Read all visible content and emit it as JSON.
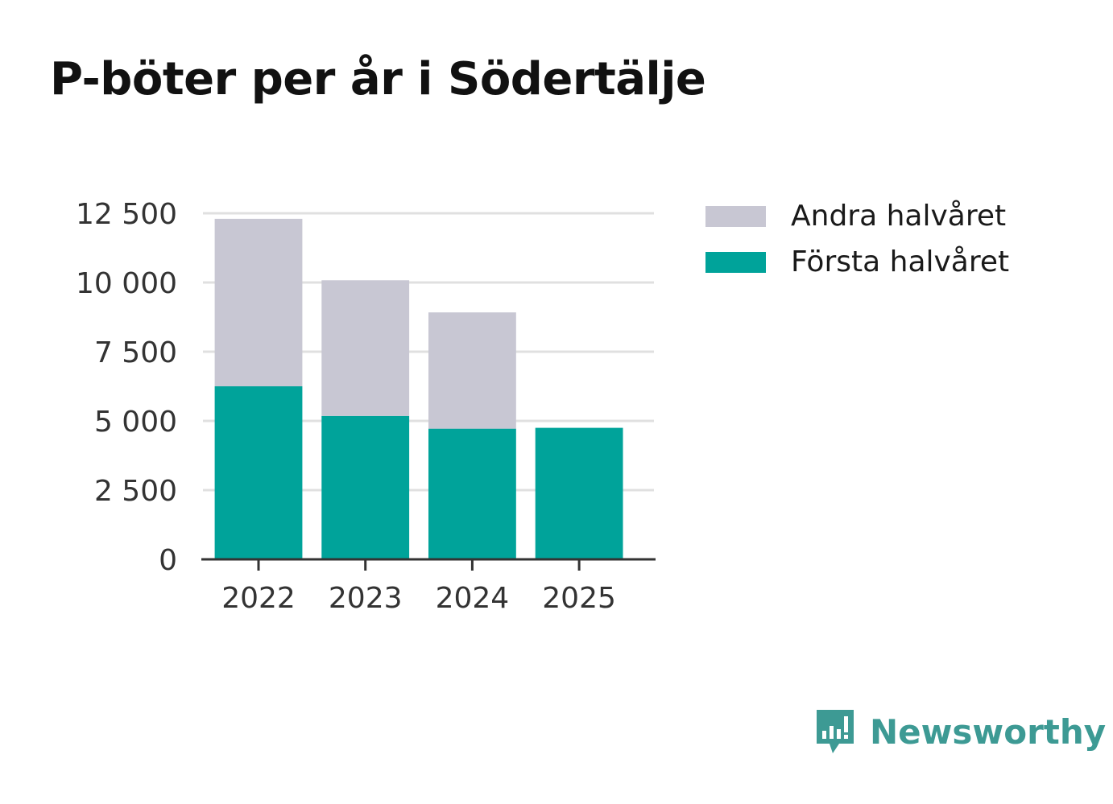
{
  "chart_data": {
    "type": "bar",
    "stacked": true,
    "title": "P-böter per år i Södertälje",
    "categories": [
      "2022",
      "2023",
      "2024",
      "2025"
    ],
    "series": [
      {
        "name": "Första halvåret",
        "color": "#00a39a",
        "values": [
          6250,
          5180,
          4720,
          4750
        ]
      },
      {
        "name": "Andra halvåret",
        "color": "#c8c7d3",
        "values": [
          6050,
          4900,
          4200,
          0
        ]
      }
    ],
    "ylim": [
      0,
      12500
    ],
    "yticks": [
      0,
      2500,
      5000,
      7500,
      10000,
      12500
    ],
    "ytick_labels": [
      "0",
      "2 500",
      "5 000",
      "7 500",
      "10 000",
      "12 500"
    ],
    "xlabel": "",
    "ylabel": "",
    "grid": true,
    "legend": [
      "Andra halvåret",
      "Första halvåret"
    ],
    "legend_position": "right"
  },
  "brand": {
    "name": "Newsworthy",
    "color": "#3d9a94",
    "icon": "newsworthy-logo-icon"
  }
}
